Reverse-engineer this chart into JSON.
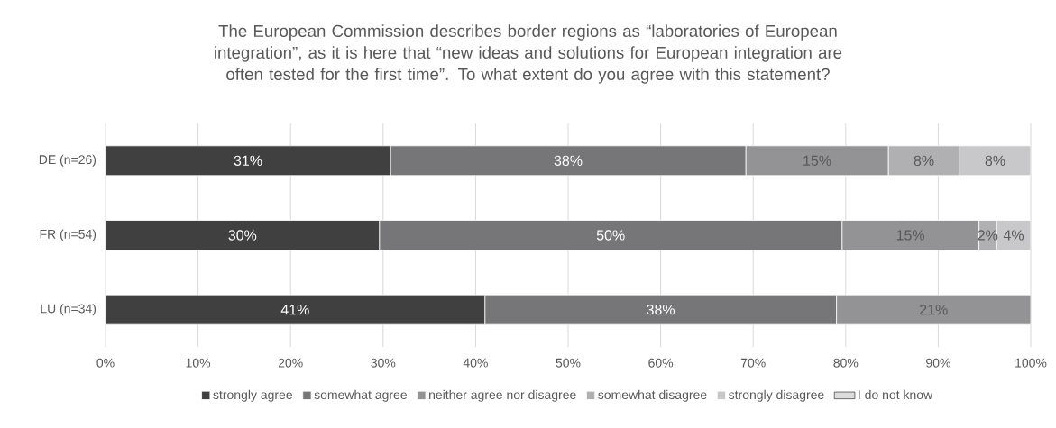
{
  "chart_data": {
    "type": "bar",
    "orientation": "horizontal",
    "stacked": true,
    "title": "The European Commission describes border regions as “laboratories of European integration”, as it is here that “new ideas and solutions for European integration are often tested for the first time”. To what extent do you agree with this statement?",
    "categories": [
      "DE (n=26)",
      "FR (n=54)",
      "LU (n=34)"
    ],
    "series": [
      {
        "name": "strongly agree",
        "color": "#404040",
        "values": [
          30.8,
          29.6,
          41
        ],
        "value_labels": [
          "31%",
          "30%",
          "41%"
        ]
      },
      {
        "name": "somewhat agree",
        "color": "#767678",
        "values": [
          38.4,
          50,
          38
        ],
        "value_labels": [
          "38%",
          "50%",
          "38%"
        ]
      },
      {
        "name": "neither agree nor disagree",
        "color": "#939395",
        "values": [
          15.4,
          14.8,
          21
        ],
        "value_labels": [
          "15%",
          "15%",
          "21%"
        ]
      },
      {
        "name": "somewhat disagree",
        "color": "#b0b0b2",
        "values": [
          7.7,
          1.9,
          null
        ],
        "value_labels": [
          "8%",
          "2%",
          null
        ]
      },
      {
        "name": "strongly disagree",
        "color": "#c8c8ca",
        "values": [
          7.7,
          3.7,
          null
        ],
        "value_labels": [
          "8%",
          "4%",
          null
        ]
      },
      {
        "name": "I do not know",
        "color": "#dcdcdc",
        "values": [
          null,
          null,
          null
        ],
        "value_labels": [
          null,
          null,
          null
        ]
      }
    ],
    "xlim": [
      0,
      100
    ],
    "xticks": [
      {
        "value": 0,
        "label": "0%"
      },
      {
        "value": 10,
        "label": "10%"
      },
      {
        "value": 20,
        "label": "20%"
      },
      {
        "value": 30,
        "label": "30%"
      },
      {
        "value": 40,
        "label": "40%"
      },
      {
        "value": 50,
        "label": "50%"
      },
      {
        "value": 60,
        "label": "60%"
      },
      {
        "value": 70,
        "label": "70%"
      },
      {
        "value": 80,
        "label": "80%"
      },
      {
        "value": 90,
        "label": "90%"
      },
      {
        "value": 100,
        "label": "100%"
      }
    ],
    "grid": "x",
    "legend": "bottom"
  }
}
